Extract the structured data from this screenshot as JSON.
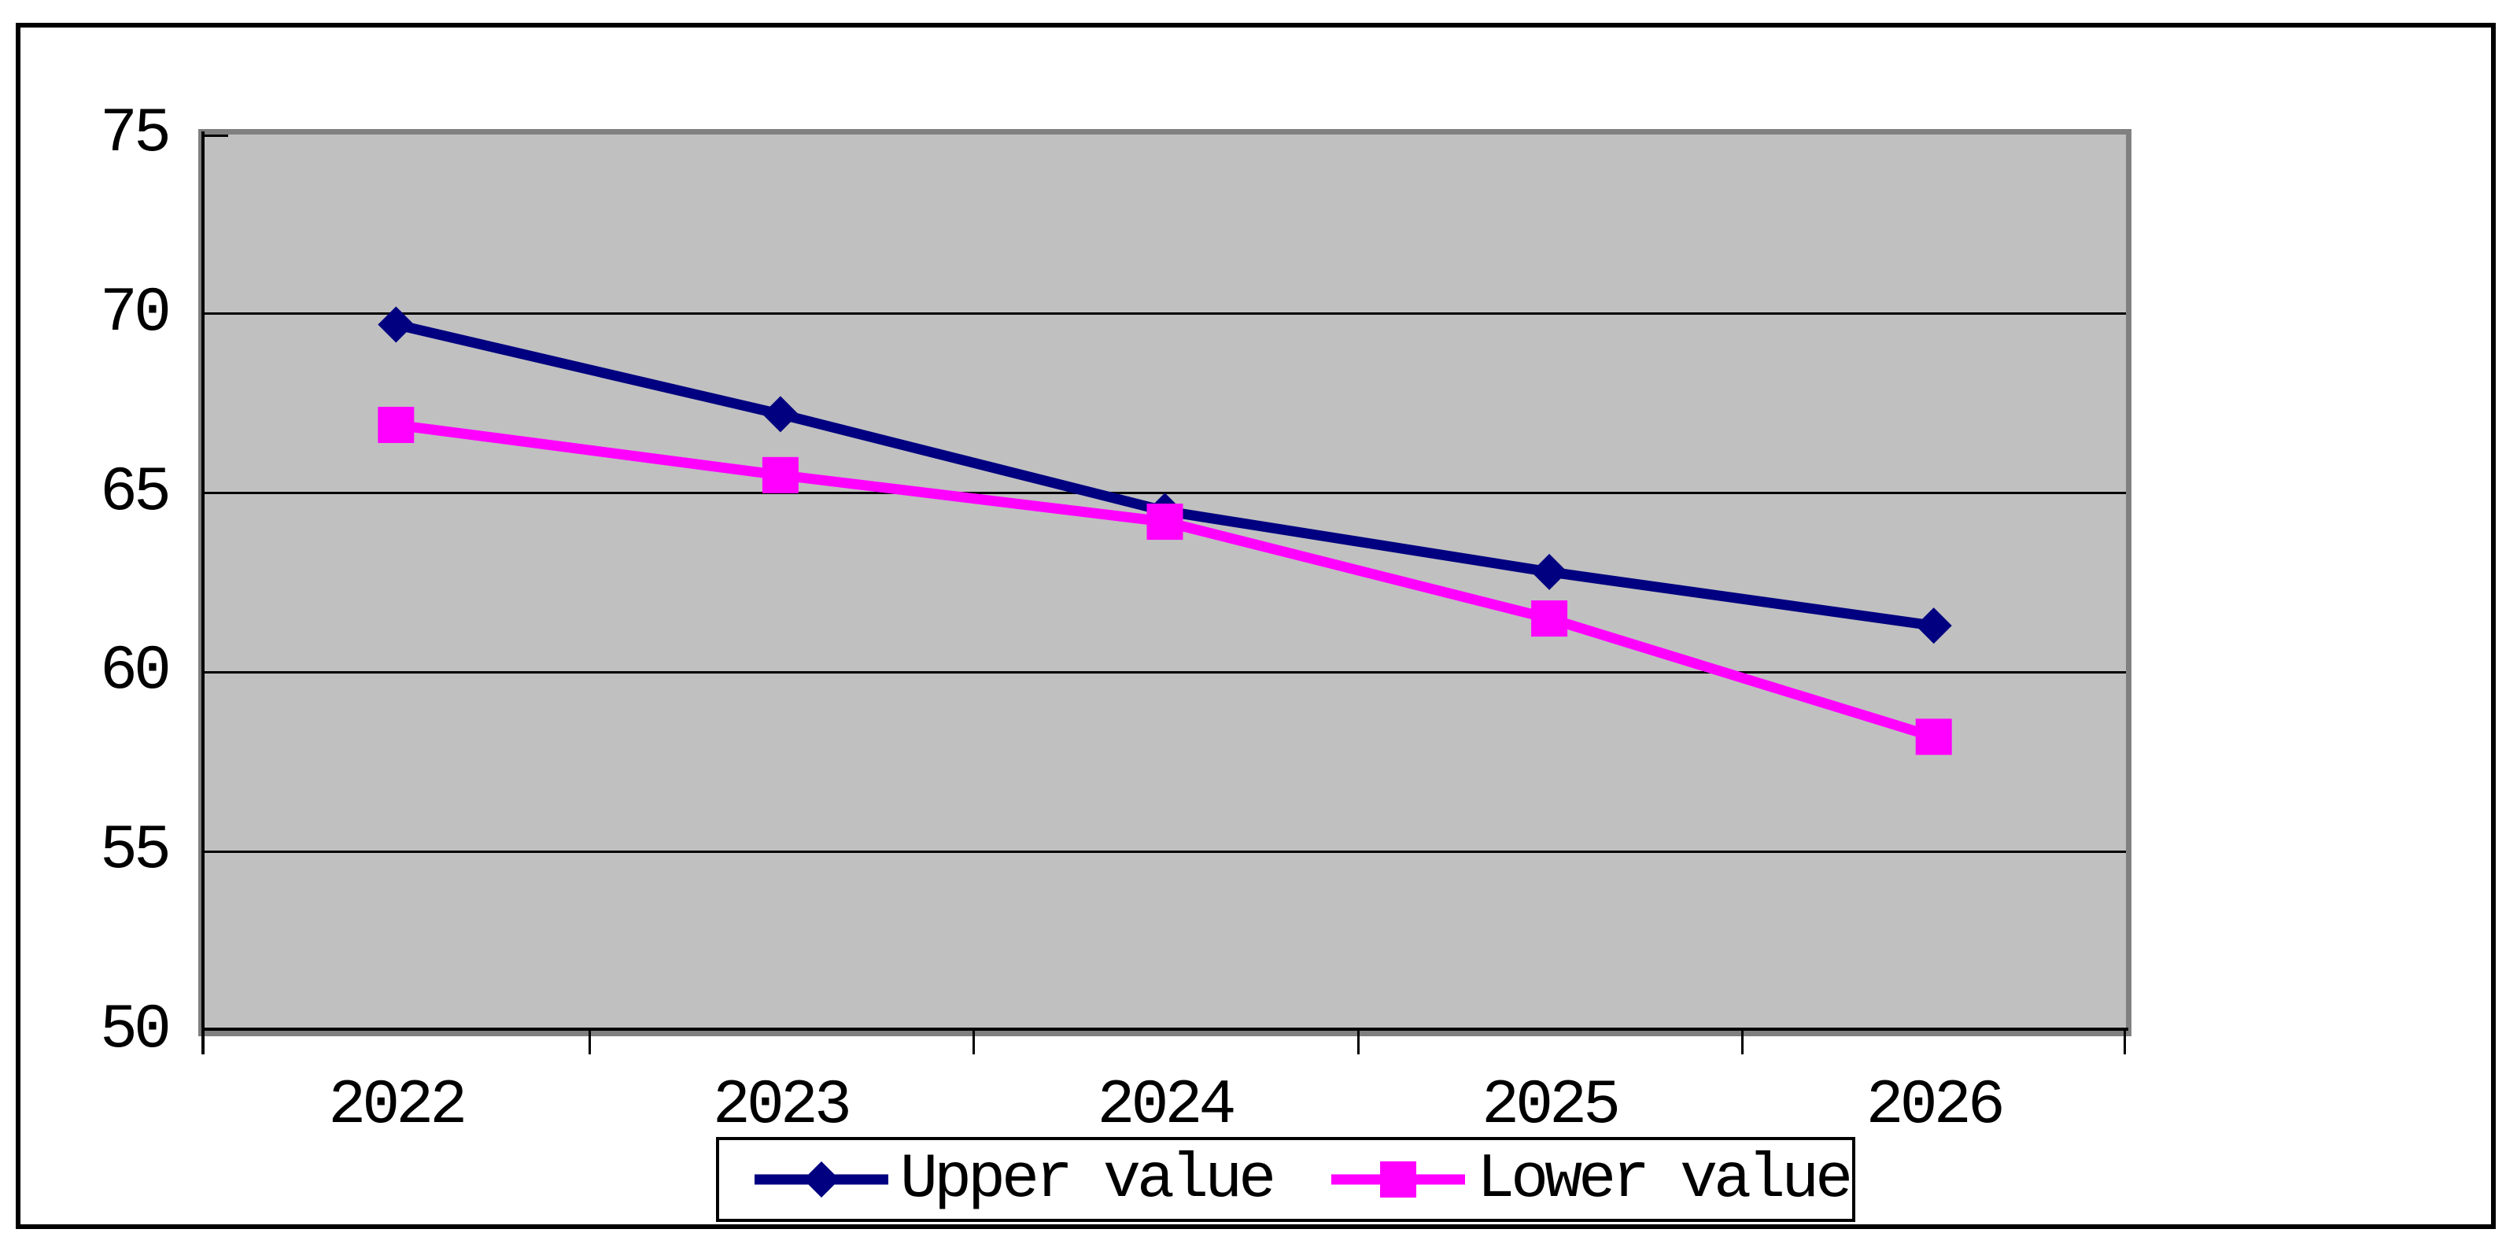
{
  "chart_data": {
    "type": "line",
    "title": "",
    "categories": [
      "2022",
      "2023",
      "2024",
      "2025",
      "2026"
    ],
    "series": [
      {
        "name": "Upper value",
        "values": [
          69.7,
          67.2,
          64.5,
          62.8,
          61.3
        ],
        "color": "#000080",
        "marker": "diamond"
      },
      {
        "name": "Lower value",
        "values": [
          66.9,
          65.5,
          64.2,
          61.5,
          58.2
        ],
        "color": "#ff00ff",
        "marker": "square"
      }
    ],
    "xlabel": "",
    "ylabel": "",
    "ylim": [
      50,
      75
    ],
    "ytick_step": 5,
    "yticks": [
      "75",
      "70",
      "65",
      "60",
      "55",
      "50"
    ],
    "grid": true,
    "gridline_color": "#000000",
    "legend_position": "bottom-center",
    "plot_bg": "#c0c0c0",
    "plot_border_color": "#808080",
    "axis_color": "#000000",
    "background": "#ffffff"
  }
}
